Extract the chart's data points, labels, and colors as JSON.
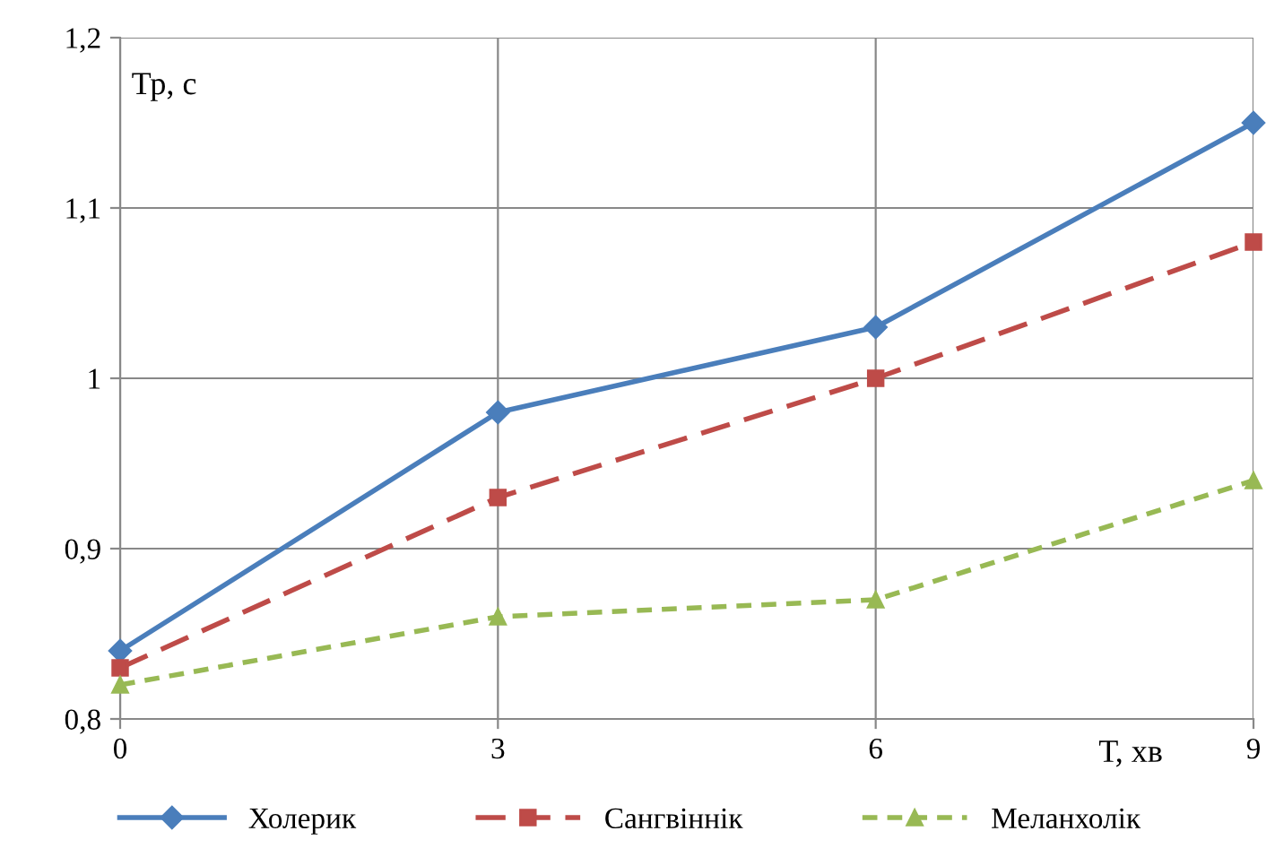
{
  "chart_data": {
    "type": "line",
    "xlabel": "Т, хв",
    "ylabel": "Тр, с",
    "x": [
      0,
      3,
      6,
      9
    ],
    "series": [
      {
        "name": "Холерик",
        "color": "#4a7ebb",
        "values": [
          0.84,
          0.98,
          1.03,
          1.15
        ],
        "marker": "diamond",
        "line_style": "solid"
      },
      {
        "name": "Сангвіннік",
        "color": "#be4b48",
        "values": [
          0.83,
          0.93,
          1.0,
          1.08
        ],
        "marker": "square",
        "line_style": "dashed"
      },
      {
        "name": "Меланхолік",
        "color": "#98b954",
        "values": [
          0.82,
          0.86,
          0.87,
          0.94
        ],
        "marker": "triangle",
        "line_style": "dotted"
      }
    ],
    "xlim": [
      0,
      9
    ],
    "xticks": [
      0,
      3,
      6,
      9
    ],
    "ylim": [
      0.8,
      1.2
    ],
    "yticks": [
      {
        "value": 0.8,
        "label": "0,8"
      },
      {
        "value": 0.9,
        "label": "0,9"
      },
      1,
      {
        "value": 1.1,
        "label": "1,1"
      },
      {
        "value": 1.2,
        "label": "1,2"
      }
    ],
    "grid": true,
    "legend": "bottom"
  }
}
